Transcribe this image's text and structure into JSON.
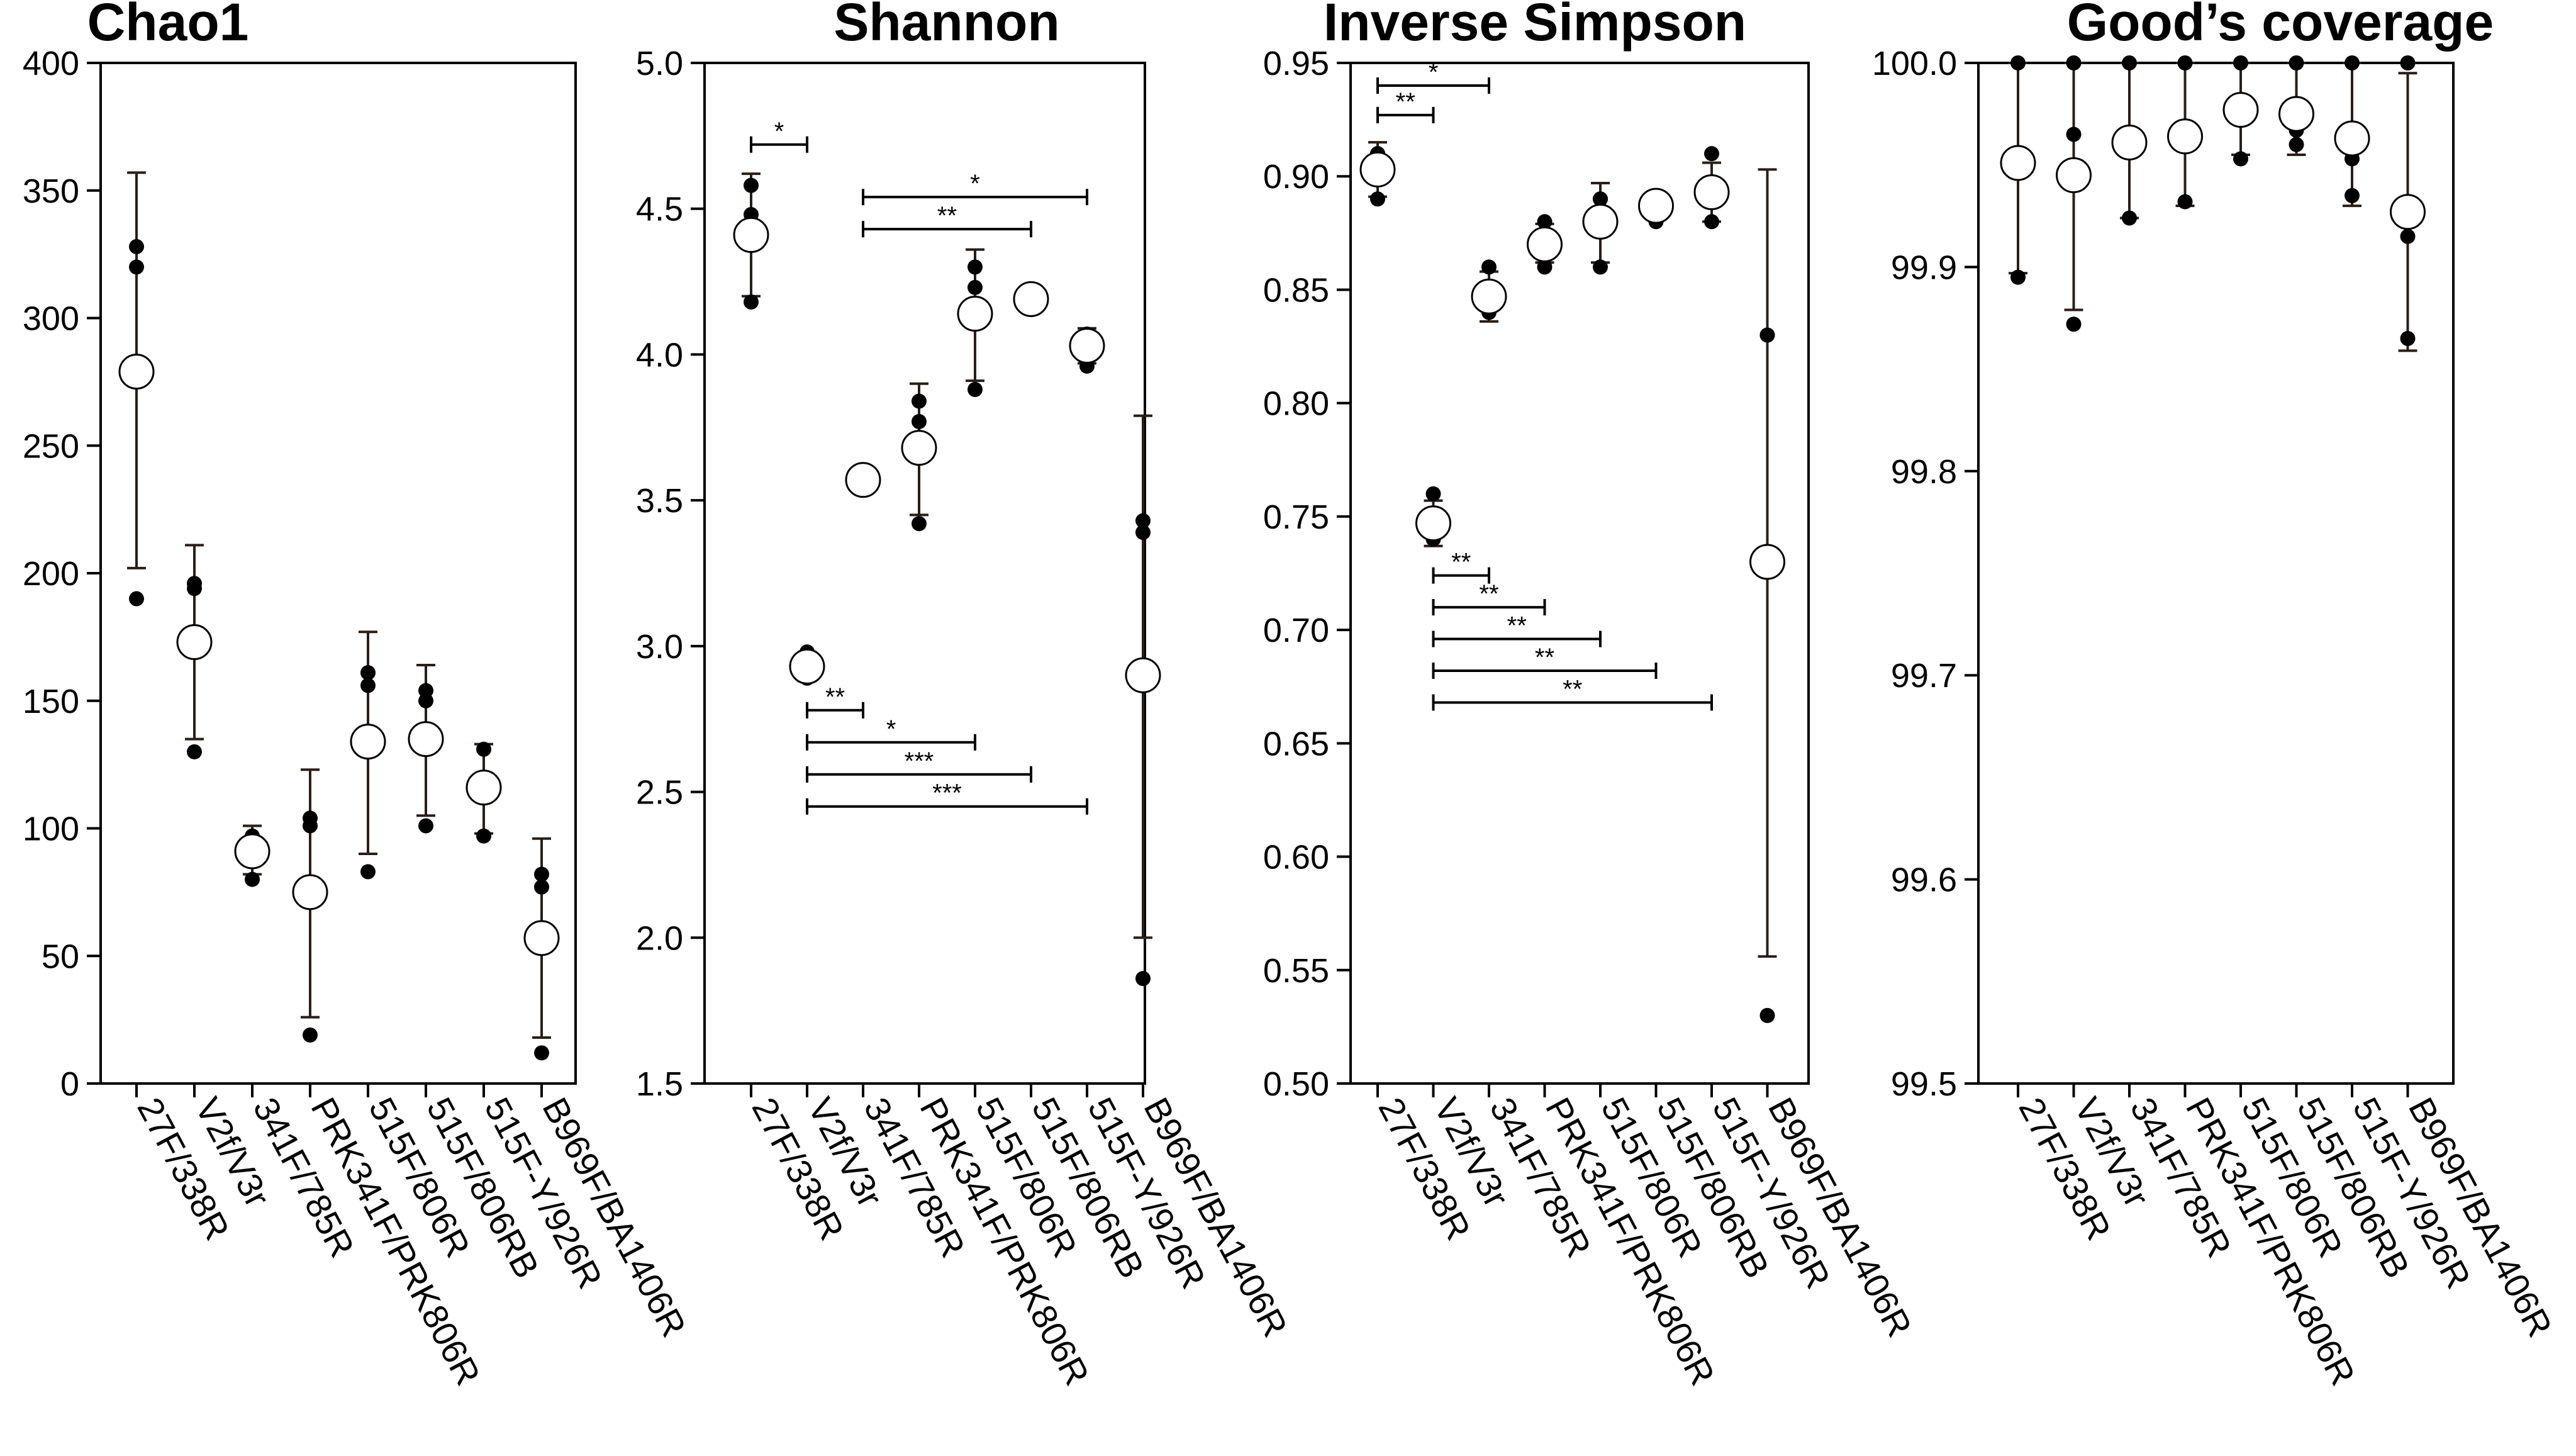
{
  "categories": [
    "27F/338R",
    "V2f/V3r",
    "341F/785R",
    "PRK341F/PRK806R",
    "515F/806R",
    "515F/806RB",
    "515F-Y/926R",
    "B969F/BA1406R"
  ],
  "chart_data": [
    {
      "type": "scatter",
      "title": "Chao1",
      "ylim": [
        0,
        400
      ],
      "yticks": [
        0,
        50,
        100,
        150,
        200,
        250,
        300,
        350,
        400
      ],
      "ytick_labels": [
        "0",
        "50",
        "100",
        "150",
        "200",
        "250",
        "300",
        "350",
        "400"
      ],
      "categories": [
        "27F/338R",
        "V2f/V3r",
        "341F/785R",
        "PRK341F/PRK806R",
        "515F/806R",
        "515F/806RB",
        "515F-Y/926R",
        "B969F/BA1406R"
      ],
      "means": [
        279,
        173,
        91,
        75,
        134,
        135,
        116,
        57
      ],
      "err_low": [
        202,
        135,
        82,
        26,
        90,
        105,
        98,
        18
      ],
      "err_high": [
        357,
        211,
        101,
        123,
        177,
        164,
        133,
        96
      ],
      "points": [
        [
          190,
          320,
          328
        ],
        [
          130,
          194,
          196
        ],
        [
          80,
          94,
          97
        ],
        [
          19,
          101,
          104
        ],
        [
          83,
          156,
          161
        ],
        [
          101,
          150,
          154
        ],
        [
          97,
          120,
          131
        ],
        [
          12,
          77,
          82
        ]
      ],
      "comparisons": []
    },
    {
      "type": "scatter",
      "title": "Shannon",
      "ylim": [
        1.5,
        5.0
      ],
      "yticks": [
        1.5,
        2.0,
        2.5,
        3.0,
        3.5,
        4.0,
        4.5,
        5.0
      ],
      "ytick_labels": [
        "1.5",
        "2.0",
        "2.5",
        "3.0",
        "3.5",
        "4.0",
        "4.5",
        "5.0"
      ],
      "categories": [
        "27F/338R",
        "V2f/V3r",
        "341F/785R",
        "PRK341F/PRK806R",
        "515F/806R",
        "515F/806RB",
        "515F-Y/926R",
        "B969F/BA1406R"
      ],
      "means": [
        4.41,
        2.93,
        3.57,
        3.68,
        4.14,
        4.19,
        4.03,
        2.9
      ],
      "err_low": [
        4.2,
        2.88,
        3.55,
        3.45,
        3.91,
        4.16,
        3.97,
        2.0
      ],
      "err_high": [
        4.62,
        2.98,
        3.59,
        3.9,
        4.36,
        4.22,
        4.09,
        3.79
      ],
      "points": [
        [
          4.18,
          4.48,
          4.58
        ],
        [
          2.89,
          2.92,
          2.98
        ],
        [
          3.55,
          3.57,
          3.58
        ],
        [
          3.42,
          3.77,
          3.84
        ],
        [
          3.88,
          4.23,
          4.3
        ],
        [
          4.17,
          4.19,
          4.21
        ],
        [
          3.96,
          4.05,
          4.07
        ],
        [
          1.86,
          3.39,
          3.43
        ]
      ],
      "comparisons": [
        {
          "from": 0,
          "to": 1,
          "y": 4.72,
          "label": "*"
        },
        {
          "from": 2,
          "to": 6,
          "y": 4.54,
          "label": "*"
        },
        {
          "from": 2,
          "to": 5,
          "y": 4.43,
          "label": "**"
        },
        {
          "from": 1,
          "to": 2,
          "y": 2.78,
          "label": "**"
        },
        {
          "from": 1,
          "to": 4,
          "y": 2.67,
          "label": "*"
        },
        {
          "from": 1,
          "to": 5,
          "y": 2.56,
          "label": "***"
        },
        {
          "from": 1,
          "to": 6,
          "y": 2.45,
          "label": "***"
        }
      ]
    },
    {
      "type": "scatter",
      "title": "Inverse Simpson",
      "ylim": [
        0.5,
        0.95
      ],
      "yticks": [
        0.5,
        0.55,
        0.6,
        0.65,
        0.7,
        0.75,
        0.8,
        0.85,
        0.9,
        0.95
      ],
      "ytick_labels": [
        "0.50",
        "0.55",
        "0.60",
        "0.65",
        "0.70",
        "0.75",
        "0.80",
        "0.85",
        "0.90",
        "0.95"
      ],
      "categories": [
        "27F/338R",
        "V2f/V3r",
        "341F/785R",
        "PRK341F/PRK806R",
        "515F/806R",
        "515F/806RB",
        "515F-Y/926R",
        "B969F/BA1406R"
      ],
      "means": [
        0.903,
        0.747,
        0.847,
        0.87,
        0.88,
        0.887,
        0.893,
        0.73
      ],
      "err_low": [
        0.891,
        0.737,
        0.836,
        0.862,
        0.862,
        0.881,
        0.88,
        0.556
      ],
      "err_high": [
        0.915,
        0.757,
        0.858,
        0.879,
        0.897,
        0.891,
        0.906,
        0.903
      ],
      "points": [
        [
          0.89,
          0.91,
          0.91
        ],
        [
          0.74,
          0.75,
          0.76
        ],
        [
          0.84,
          0.85,
          0.86
        ],
        [
          0.86,
          0.87,
          0.88
        ],
        [
          0.86,
          0.89,
          0.89
        ],
        [
          0.88,
          0.89,
          0.89
        ],
        [
          0.88,
          0.89,
          0.91
        ],
        [
          0.53,
          0.83,
          0.83
        ]
      ],
      "comparisons": [
        {
          "from": 0,
          "to": 2,
          "y": 0.94,
          "label": "*"
        },
        {
          "from": 0,
          "to": 1,
          "y": 0.927,
          "label": "**"
        },
        {
          "from": 1,
          "to": 2,
          "y": 0.724,
          "label": "**"
        },
        {
          "from": 1,
          "to": 3,
          "y": 0.71,
          "label": "**"
        },
        {
          "from": 1,
          "to": 4,
          "y": 0.696,
          "label": "**"
        },
        {
          "from": 1,
          "to": 5,
          "y": 0.682,
          "label": "**"
        },
        {
          "from": 1,
          "to": 6,
          "y": 0.668,
          "label": "**"
        }
      ]
    },
    {
      "type": "scatter",
      "title": "Good’s coverage",
      "ylim": [
        99.5,
        100.0
      ],
      "yticks": [
        99.5,
        99.6,
        99.7,
        99.8,
        99.9,
        100.0
      ],
      "ytick_labels": [
        "99.5",
        "99.6",
        "99.7",
        "99.8",
        "99.9",
        "100.0"
      ],
      "categories": [
        "27F/338R",
        "V2f/V3r",
        "341F/785R",
        "PRK341F/PRK806R",
        "515F/806R",
        "515F/806RB",
        "515F-Y/926R",
        "B969F/BA1406R"
      ],
      "means": [
        99.951,
        99.945,
        99.961,
        99.964,
        99.977,
        99.975,
        99.963,
        99.927
      ],
      "err_low": [
        99.897,
        99.879,
        99.924,
        99.93,
        99.955,
        99.955,
        99.93,
        99.859
      ],
      "err_high": [
        100.0,
        100.0,
        100.0,
        100.0,
        100.0,
        100.0,
        100.0,
        99.995
      ],
      "points": [
        [
          99.895,
          99.955,
          100.0
        ],
        [
          99.872,
          99.965,
          100.0
        ],
        [
          99.924,
          99.959,
          100.0
        ],
        [
          99.932,
          99.959,
          100.0
        ],
        [
          99.953,
          99.976,
          100.0
        ],
        [
          99.96,
          99.967,
          100.0
        ],
        [
          99.935,
          99.953,
          100.0
        ],
        [
          99.865,
          99.915,
          100.0
        ]
      ],
      "comparisons": []
    }
  ]
}
